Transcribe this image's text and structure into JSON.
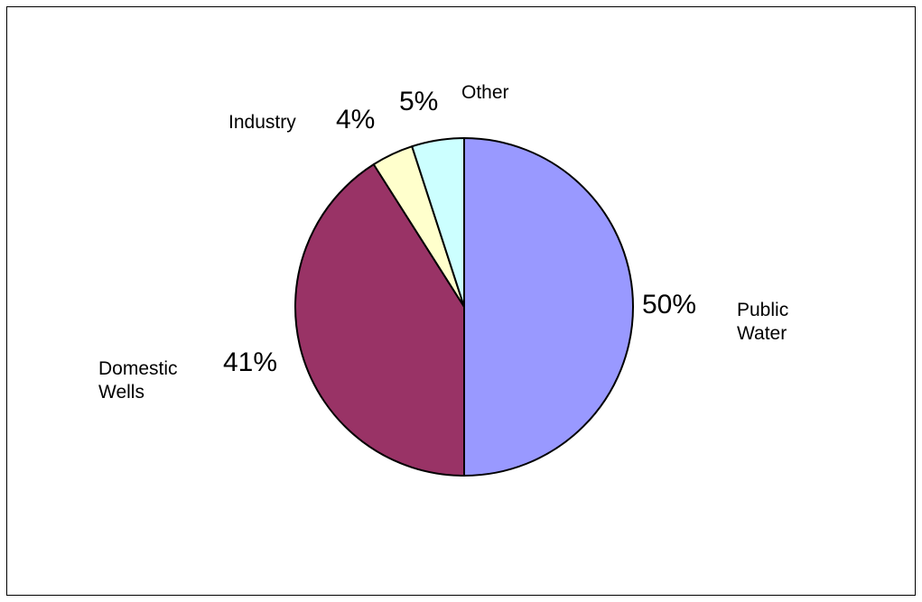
{
  "chart_data": {
    "type": "pie",
    "start_angle_deg": 0,
    "direction": "clockwise",
    "slices": [
      {
        "label": "Public Water",
        "label_lines": [
          "Public",
          "Water"
        ],
        "value": 50,
        "value_label": "50%",
        "color": "#9999ff"
      },
      {
        "label": "Domestic Wells",
        "label_lines": [
          "Domestic",
          "Wells"
        ],
        "value": 41,
        "value_label": "41%",
        "color": "#993366"
      },
      {
        "label": "Industry",
        "label_lines": [
          "Industry"
        ],
        "value": 4,
        "value_label": "4%",
        "color": "#ffffcc"
      },
      {
        "label": "Other",
        "label_lines": [
          "Other"
        ],
        "value": 5,
        "value_label": "5%",
        "color": "#ccffff"
      }
    ]
  }
}
